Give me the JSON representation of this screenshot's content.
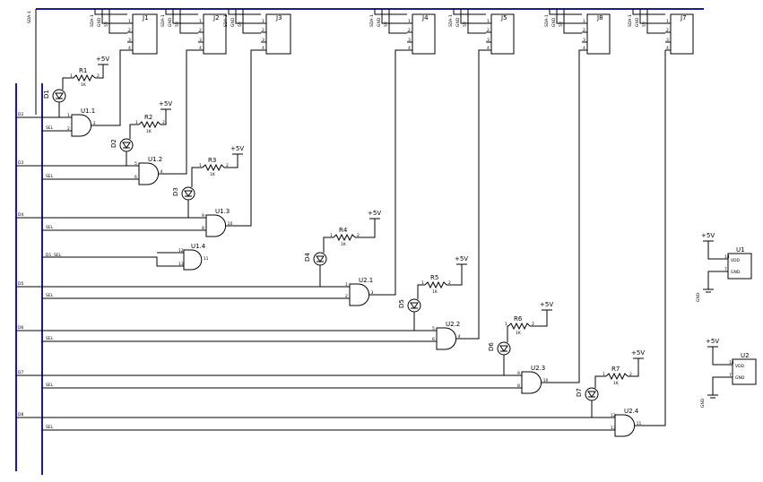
{
  "colors": {
    "bus": "#1a1aa0",
    "wire": "#000000",
    "background": "#ffffff"
  },
  "top_bus_label": "SDA-1",
  "connectors": [
    {
      "ref": "J1",
      "pins": [
        "SDA-1",
        "GND",
        "5V"
      ]
    },
    {
      "ref": "J2",
      "pins": [
        "SDA-1",
        "GND",
        "5V"
      ]
    },
    {
      "ref": "J3",
      "pins": [
        "SDA-1",
        "GND",
        "5V"
      ]
    },
    {
      "ref": "J4",
      "pins": [
        "SDA-1",
        "GND",
        "5V"
      ]
    },
    {
      "ref": "J5",
      "pins": [
        "SDA-1",
        "GND",
        "5V"
      ]
    },
    {
      "ref": "J8",
      "pins": [
        "SDA-1",
        "GND",
        "5V"
      ]
    },
    {
      "ref": "J7",
      "pins": [
        "SDA-1",
        "GND",
        "5V"
      ]
    }
  ],
  "stages": [
    {
      "gate": "U1.1",
      "diode": "D1",
      "resistor": "R1",
      "value": "1K",
      "supply": "+5V",
      "bus_a": "D2",
      "bus_b": "SEL",
      "pin_a": "1",
      "pin_b": "2",
      "pin_out": "3"
    },
    {
      "gate": "U1.2",
      "diode": "D2",
      "resistor": "R2",
      "value": "1K",
      "supply": "+5V",
      "bus_a": "D3",
      "bus_b": "SEL",
      "pin_a": "5",
      "pin_b": "6",
      "pin_out": "4"
    },
    {
      "gate": "U1.3",
      "diode": "D3",
      "resistor": "R3",
      "value": "1K",
      "supply": "+5V",
      "bus_a": "D4",
      "bus_b": "SEL",
      "pin_a": "9",
      "pin_b": "8",
      "pin_out": "10"
    },
    {
      "gate": "U2.1",
      "diode": "D4",
      "resistor": "R4",
      "value": "1K",
      "supply": "+5V",
      "bus_a": "D5",
      "bus_b": "SEL",
      "pin_a": "1",
      "pin_b": "2",
      "pin_out": "3"
    },
    {
      "gate": "U2.2",
      "diode": "D5",
      "resistor": "R5",
      "value": "1K",
      "supply": "+5V",
      "bus_a": "D6",
      "bus_b": "SEL",
      "pin_a": "5",
      "pin_b": "6",
      "pin_out": "4"
    },
    {
      "gate": "U2.3",
      "diode": "D6",
      "resistor": "R6",
      "value": "1K",
      "supply": "+5V",
      "bus_a": "D7",
      "bus_b": "SEL",
      "pin_a": "9",
      "pin_b": "8",
      "pin_out": "10"
    },
    {
      "gate": "U2.4",
      "diode": "D7",
      "resistor": "R7",
      "value": "1K",
      "supply": "+5V",
      "bus_a": "D8",
      "bus_b": "SEL",
      "pin_a": "12",
      "pin_b": "13",
      "pin_out": "11"
    }
  ],
  "extra_gate": {
    "ref": "U1.4",
    "bus_a": "D1",
    "bus_b": "SEL",
    "pin_a": "12",
    "pin_b": "13",
    "pin_out": "11"
  },
  "power_units": [
    {
      "ref": "U1",
      "vdd": "VDD",
      "gnd": "GND",
      "supply": "+5V",
      "ground": "GND",
      "pin_vdd": "14",
      "pin_gnd": "7"
    },
    {
      "ref": "U2",
      "vdd": "VDD",
      "gnd": "GND",
      "supply": "+5V",
      "ground": "GND",
      "pin_vdd": "14",
      "pin_gnd": "7"
    }
  ],
  "connector_pin_numbers": [
    "1",
    "2",
    "3",
    "4"
  ],
  "resistor_pin_numbers": [
    "1",
    "2"
  ]
}
